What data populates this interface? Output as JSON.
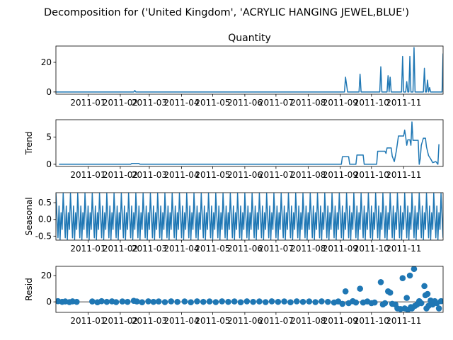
{
  "suptitle": "Decomposition for ('United Kingdom', 'ACRYLIC HANGING JEWEL,BLUE')",
  "series_color": "#1f77b4",
  "xtick_labels": [
    "2011-01",
    "2011-02",
    "2011-03",
    "2011-04",
    "2011-05",
    "2011-06",
    "2011-07",
    "2011-08",
    "2011-09",
    "2011-10",
    "2011-11"
  ],
  "chart_data": [
    {
      "type": "line",
      "title": "Quantity",
      "ylabel": "",
      "yticks": [
        0,
        20
      ],
      "ylim": [
        -1.5,
        31
      ],
      "x_date_range": [
        "2010-12-01",
        "2011-12-09"
      ],
      "points": [
        [
          "2010-12-01",
          0
        ],
        [
          "2011-02-14",
          0
        ],
        [
          "2011-02-15",
          1
        ],
        [
          "2011-02-16",
          0
        ],
        [
          "2011-09-05",
          0
        ],
        [
          "2011-09-06",
          10
        ],
        [
          "2011-09-08",
          0
        ],
        [
          "2011-09-19",
          0
        ],
        [
          "2011-09-20",
          12
        ],
        [
          "2011-09-21",
          0
        ],
        [
          "2011-10-09",
          0
        ],
        [
          "2011-10-10",
          17
        ],
        [
          "2011-10-11",
          0
        ],
        [
          "2011-10-16",
          0
        ],
        [
          "2011-10-17",
          11
        ],
        [
          "2011-10-18",
          0
        ],
        [
          "2011-10-19",
          10
        ],
        [
          "2011-10-20",
          0
        ],
        [
          "2011-10-30",
          0
        ],
        [
          "2011-10-31",
          24
        ],
        [
          "2011-11-01",
          0
        ],
        [
          "2011-11-03",
          0
        ],
        [
          "2011-11-04",
          7
        ],
        [
          "2011-11-05",
          0
        ],
        [
          "2011-11-06",
          0
        ],
        [
          "2011-11-07",
          24
        ],
        [
          "2011-11-08",
          0
        ],
        [
          "2011-11-10",
          0
        ],
        [
          "2011-11-11",
          30
        ],
        [
          "2011-11-12",
          0
        ],
        [
          "2011-11-20",
          0
        ],
        [
          "2011-11-21",
          16
        ],
        [
          "2011-11-22",
          0
        ],
        [
          "2011-11-23",
          0
        ],
        [
          "2011-11-24",
          8
        ],
        [
          "2011-11-25",
          0
        ],
        [
          "2011-11-26",
          3
        ],
        [
          "2011-11-27",
          0
        ],
        [
          "2011-12-08",
          0
        ],
        [
          "2011-12-09",
          26
        ]
      ]
    },
    {
      "type": "line",
      "title": "",
      "ylabel": "Trend",
      "yticks": [
        0,
        5
      ],
      "ylim": [
        -0.4,
        8.2
      ],
      "x_date_range": [
        "2010-12-01",
        "2011-12-09"
      ],
      "points": [
        [
          "2010-12-04",
          0
        ],
        [
          "2011-02-11",
          0
        ],
        [
          "2011-02-12",
          0.15
        ],
        [
          "2011-02-19",
          0.15
        ],
        [
          "2011-02-20",
          0
        ],
        [
          "2011-09-02",
          0
        ],
        [
          "2011-09-03",
          1.4
        ],
        [
          "2011-09-09",
          1.4
        ],
        [
          "2011-09-10",
          0
        ],
        [
          "2011-09-16",
          0
        ],
        [
          "2011-09-17",
          1.7
        ],
        [
          "2011-09-23",
          1.7
        ],
        [
          "2011-09-24",
          0
        ],
        [
          "2011-10-06",
          0
        ],
        [
          "2011-10-07",
          2.4
        ],
        [
          "2011-10-14",
          2.4
        ],
        [
          "2011-10-15",
          2.0
        ],
        [
          "2011-10-16",
          3.0
        ],
        [
          "2011-10-20",
          3.0
        ],
        [
          "2011-10-21",
          1.5
        ],
        [
          "2011-10-23",
          0.5
        ],
        [
          "2011-10-25",
          2.5
        ],
        [
          "2011-10-27",
          5.2
        ],
        [
          "2011-11-01",
          5.2
        ],
        [
          "2011-11-02",
          6.3
        ],
        [
          "2011-11-03",
          5.0
        ],
        [
          "2011-11-04",
          3.5
        ],
        [
          "2011-11-05",
          4.5
        ],
        [
          "2011-11-07",
          4.5
        ],
        [
          "2011-11-08",
          3.5
        ],
        [
          "2011-11-09",
          7.8
        ],
        [
          "2011-11-10",
          4.4
        ],
        [
          "2011-11-15",
          4.4
        ],
        [
          "2011-11-16",
          0
        ],
        [
          "2011-11-17",
          1.0
        ],
        [
          "2011-11-18",
          3.5
        ],
        [
          "2011-11-20",
          4.8
        ],
        [
          "2011-11-22",
          4.8
        ],
        [
          "2011-11-23",
          3.2
        ],
        [
          "2011-11-25",
          1.6
        ],
        [
          "2011-11-27",
          1.0
        ],
        [
          "2011-11-29",
          0.3
        ],
        [
          "2011-12-02",
          0.5
        ],
        [
          "2011-12-04",
          0
        ],
        [
          "2011-12-05",
          3.7
        ]
      ]
    },
    {
      "type": "line",
      "title": "",
      "ylabel": "Seasonal",
      "yticks": [
        -0.5,
        0.0,
        0.5
      ],
      "ylim": [
        -0.62,
        0.8
      ],
      "x_date_range": [
        "2010-12-01",
        "2011-12-09"
      ],
      "period_days": 7,
      "weekly_pattern": [
        0.78,
        0.1,
        -0.55,
        0.4,
        -0.6,
        0.2,
        -0.3
      ]
    },
    {
      "type": "scatter",
      "title": "",
      "ylabel": "Resid",
      "yticks": [
        0,
        20
      ],
      "ylim": [
        -8,
        27
      ],
      "x_date_range": [
        "2010-12-01",
        "2011-12-09"
      ],
      "baseline": 0,
      "points": [
        [
          "2010-12-03",
          0.5
        ],
        [
          "2010-12-07",
          0
        ],
        [
          "2010-12-10",
          0.3
        ],
        [
          "2010-12-14",
          -0.2
        ],
        [
          "2010-12-17",
          0.4
        ],
        [
          "2010-12-21",
          0
        ],
        [
          "2011-01-05",
          0.3
        ],
        [
          "2011-01-10",
          -0.3
        ],
        [
          "2011-01-14",
          0.5
        ],
        [
          "2011-01-19",
          0
        ],
        [
          "2011-01-24",
          0.4
        ],
        [
          "2011-01-28",
          -0.2
        ],
        [
          "2011-02-03",
          0.3
        ],
        [
          "2011-02-08",
          0
        ],
        [
          "2011-02-14",
          0.8
        ],
        [
          "2011-02-17",
          0.3
        ],
        [
          "2011-02-22",
          -0.3
        ],
        [
          "2011-02-28",
          0.4
        ],
        [
          "2011-03-05",
          0
        ],
        [
          "2011-03-10",
          0.3
        ],
        [
          "2011-03-16",
          -0.2
        ],
        [
          "2011-03-22",
          0.4
        ],
        [
          "2011-03-28",
          0
        ],
        [
          "2011-04-04",
          0.3
        ],
        [
          "2011-04-10",
          -0.3
        ],
        [
          "2011-04-16",
          0.4
        ],
        [
          "2011-04-22",
          0
        ],
        [
          "2011-04-28",
          0.3
        ],
        [
          "2011-05-04",
          -0.2
        ],
        [
          "2011-05-10",
          0.4
        ],
        [
          "2011-05-16",
          0
        ],
        [
          "2011-05-22",
          0.3
        ],
        [
          "2011-05-28",
          -0.3
        ],
        [
          "2011-06-03",
          0.4
        ],
        [
          "2011-06-09",
          0
        ],
        [
          "2011-06-15",
          0.3
        ],
        [
          "2011-06-21",
          -0.2
        ],
        [
          "2011-06-27",
          0.4
        ],
        [
          "2011-07-03",
          0
        ],
        [
          "2011-07-09",
          0.3
        ],
        [
          "2011-07-15",
          -0.3
        ],
        [
          "2011-07-21",
          0.4
        ],
        [
          "2011-07-27",
          0
        ],
        [
          "2011-08-02",
          0.3
        ],
        [
          "2011-08-08",
          -0.2
        ],
        [
          "2011-08-14",
          0.4
        ],
        [
          "2011-08-20",
          0
        ],
        [
          "2011-08-26",
          -0.5
        ],
        [
          "2011-08-30",
          0.3
        ],
        [
          "2011-09-03",
          -1.5
        ],
        [
          "2011-09-06",
          8
        ],
        [
          "2011-09-09",
          -1
        ],
        [
          "2011-09-13",
          0.5
        ],
        [
          "2011-09-16",
          -0.5
        ],
        [
          "2011-09-20",
          10
        ],
        [
          "2011-09-23",
          -0.5
        ],
        [
          "2011-09-27",
          0.3
        ],
        [
          "2011-10-01",
          -1
        ],
        [
          "2011-10-04",
          -0.5
        ],
        [
          "2011-10-10",
          15
        ],
        [
          "2011-10-12",
          -2
        ],
        [
          "2011-10-14",
          -1
        ],
        [
          "2011-10-17",
          8
        ],
        [
          "2011-10-19",
          7
        ],
        [
          "2011-10-21",
          -1.5
        ],
        [
          "2011-10-24",
          -2
        ],
        [
          "2011-10-26",
          -5
        ],
        [
          "2011-10-29",
          -5.5
        ],
        [
          "2011-10-31",
          18
        ],
        [
          "2011-11-02",
          -5
        ],
        [
          "2011-11-04",
          3
        ],
        [
          "2011-11-05",
          -6
        ],
        [
          "2011-11-07",
          20
        ],
        [
          "2011-11-08",
          -4
        ],
        [
          "2011-11-09",
          -5
        ],
        [
          "2011-11-11",
          25
        ],
        [
          "2011-11-12",
          -3
        ],
        [
          "2011-11-14",
          -2
        ],
        [
          "2011-11-16",
          0.5
        ],
        [
          "2011-11-18",
          -1
        ],
        [
          "2011-11-21",
          12
        ],
        [
          "2011-11-22",
          5
        ],
        [
          "2011-11-23",
          -5
        ],
        [
          "2011-11-24",
          6
        ],
        [
          "2011-11-25",
          -3
        ],
        [
          "2011-11-27",
          1
        ],
        [
          "2011-11-29",
          -2
        ],
        [
          "2011-12-01",
          0.5
        ],
        [
          "2011-12-03",
          -1
        ],
        [
          "2011-12-05",
          -5
        ],
        [
          "2011-12-07",
          0.5
        ]
      ]
    }
  ]
}
